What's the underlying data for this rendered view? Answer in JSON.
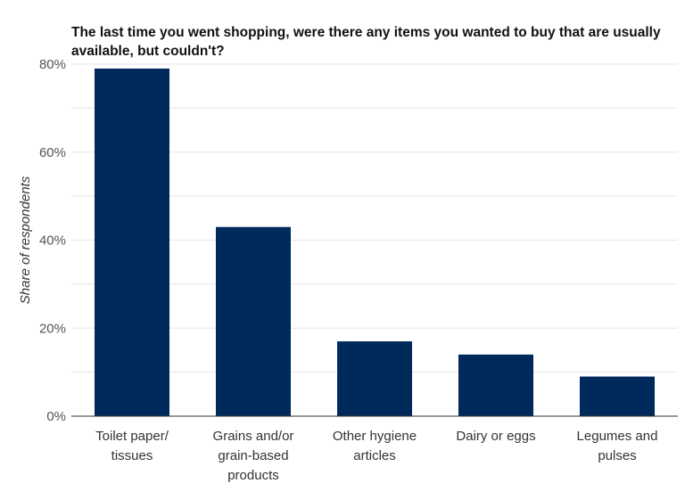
{
  "chart_data": {
    "type": "bar",
    "title": "The last time you went shopping, were there any items you wanted to buy that are usually available, but couldn't?",
    "xlabel": "",
    "ylabel": "Share of respondents",
    "categories": [
      [
        "Toilet paper/",
        "tissues"
      ],
      [
        "Grains and/or",
        "grain-based",
        "products"
      ],
      [
        "Other hygiene",
        "articles"
      ],
      [
        "Dairy or eggs"
      ],
      [
        "Legumes and",
        "pulses"
      ]
    ],
    "values": [
      79,
      43,
      17,
      14,
      9
    ],
    "ylim": [
      0,
      80
    ],
    "yticks": [
      0,
      20,
      40,
      60,
      80
    ],
    "ytick_labels": [
      "0%",
      "20%",
      "40%",
      "60%",
      "80%"
    ],
    "grid": true,
    "bar_color": "#002a5c",
    "grid_color": "#e6e6e6"
  }
}
